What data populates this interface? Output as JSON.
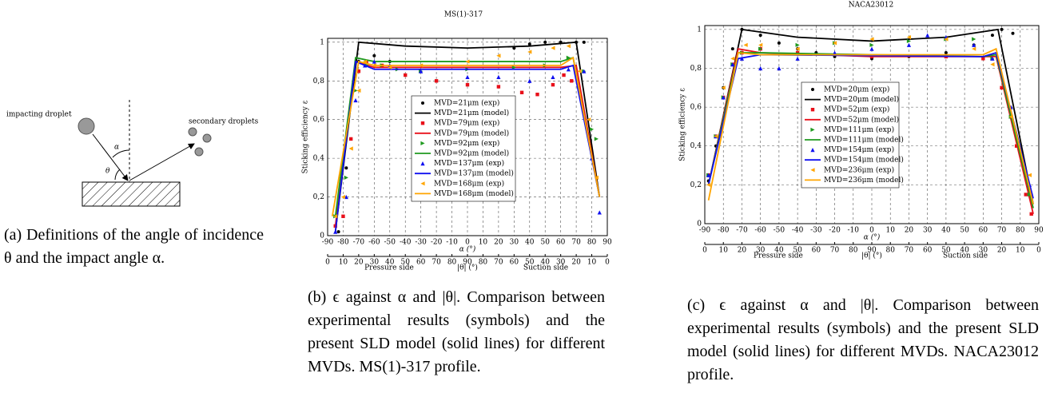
{
  "panel_a": {
    "impacting_label": "impacting droplet",
    "secondary_label": "secondary droplets",
    "alpha_label": "α",
    "theta_label": "θ"
  },
  "captions": [
    "(a) Definitions of the angle of incidence θ and the impact angle α.",
    "(b) ϵ against α and |θ|. Comparison between experimental results (symbols) and the present SLD model (solid lines) for different MVDs. MS(1)-317 profile.",
    "(c) ϵ against α and |θ|. Comparison between experimental results (symbols) and the present SLD model (solid lines) for different MVDs. NACA23012 profile."
  ],
  "chart_data": [
    {
      "type": "line",
      "title": "MS(1)-317",
      "x_label": "α (°)",
      "y_label": "Sticking efficiency ε",
      "x2_label": "|θ| (°)",
      "x2_left_label": "Pressure side",
      "x2_right_label": "Suction side",
      "grid": true,
      "legend": "center",
      "xlim": [
        -90,
        90
      ],
      "ylim": [
        0,
        1.02
      ],
      "xticks": [
        -90,
        -80,
        -70,
        -60,
        -50,
        -40,
        -30,
        -20,
        -10,
        0,
        10,
        20,
        30,
        40,
        50,
        60,
        70,
        80,
        90
      ],
      "yticks": [
        0,
        {
          "value": 0.2,
          "label": "0,2"
        },
        {
          "value": 0.4,
          "label": "0,4"
        },
        {
          "value": 0.6,
          "label": "0,6"
        },
        {
          "value": 0.8,
          "label": "0,8"
        },
        1
      ],
      "x2ticks": [
        {
          "value": -90,
          "label": "0"
        },
        {
          "value": -80,
          "label": "10"
        },
        {
          "value": -70,
          "label": "20"
        },
        {
          "value": -60,
          "label": "30"
        },
        {
          "value": -50,
          "label": "40"
        },
        {
          "value": -40,
          "label": "50"
        },
        {
          "value": -30,
          "label": "60"
        },
        {
          "value": -20,
          "label": "70"
        },
        {
          "value": -10,
          "label": "80"
        },
        {
          "value": 0,
          "label": "90"
        },
        {
          "value": 10,
          "label": "80"
        },
        {
          "value": 20,
          "label": "70"
        },
        {
          "value": 30,
          "label": "60"
        },
        {
          "value": 40,
          "label": "50"
        },
        {
          "value": 50,
          "label": "40"
        },
        {
          "value": 60,
          "label": "30"
        },
        {
          "value": 70,
          "label": "20"
        },
        {
          "value": 80,
          "label": "10"
        },
        {
          "value": 90,
          "label": "0"
        }
      ],
      "series": [
        {
          "name": "MVD=21μm (exp)",
          "color": "#000000",
          "style": "marker",
          "marker": "circle",
          "x": [
            -83,
            -78,
            -74,
            -70,
            -60,
            -50,
            30,
            40,
            50,
            60,
            70,
            75
          ],
          "values": [
            0.02,
            0.35,
            0.75,
            0.9,
            0.93,
            0.9,
            0.97,
            0.99,
            1.0,
            1.0,
            1.0,
            1.0
          ]
        },
        {
          "name": "MVD=21μm (model)",
          "color": "#000000",
          "style": "line",
          "x": [
            -85,
            -70,
            -40,
            0,
            40,
            70,
            85
          ],
          "values": [
            0.02,
            1.0,
            0.98,
            0.97,
            0.98,
            1.0,
            0.2
          ]
        },
        {
          "name": "MVD=79μm (exp)",
          "color": "#e8101a",
          "style": "marker",
          "marker": "square",
          "x": [
            -85,
            -80,
            -75,
            -70,
            -65,
            -55,
            -40,
            -20,
            0,
            20,
            35,
            45,
            55,
            62,
            67
          ],
          "values": [
            0.05,
            0.1,
            0.5,
            0.85,
            0.9,
            0.88,
            0.83,
            0.8,
            0.78,
            0.77,
            0.74,
            0.73,
            0.78,
            0.83,
            0.8
          ]
        },
        {
          "name": "MVD=79μm (model)",
          "color": "#e8101a",
          "style": "line",
          "x": [
            -85,
            -72,
            -60,
            60,
            70,
            85
          ],
          "values": [
            0.05,
            0.9,
            0.87,
            0.87,
            0.88,
            0.2
          ]
        },
        {
          "name": "MVD=92μm (exp)",
          "color": "#1f9a1f",
          "style": "marker",
          "marker": "tri-right",
          "x": [
            -85,
            -78,
            -72,
            -65,
            -55,
            -45,
            -30,
            0,
            30,
            50,
            65,
            75,
            80,
            83
          ],
          "values": [
            0.1,
            0.3,
            0.75,
            0.88,
            0.88,
            0.86,
            0.85,
            0.86,
            0.87,
            0.88,
            0.92,
            0.85,
            0.55,
            0.5
          ]
        },
        {
          "name": "MVD=92μm (model)",
          "color": "#1f9a1f",
          "style": "line",
          "x": [
            -85,
            -72,
            -60,
            60,
            68,
            85
          ],
          "values": [
            0.1,
            0.92,
            0.9,
            0.9,
            0.92,
            0.2
          ]
        },
        {
          "name": "MVD=137μm (exp)",
          "color": "#1010f0",
          "style": "marker",
          "marker": "tri-up",
          "x": [
            -85,
            -78,
            -72,
            -66,
            -60,
            -50,
            -30,
            0,
            20,
            40,
            55,
            65,
            75,
            80,
            85
          ],
          "values": [
            0.02,
            0.2,
            0.7,
            0.88,
            0.9,
            0.88,
            0.85,
            0.82,
            0.82,
            0.8,
            0.82,
            0.86,
            0.85,
            0.4,
            0.12
          ]
        },
        {
          "name": "MVD=137μm (model)",
          "color": "#1010f0",
          "style": "line",
          "x": [
            -85,
            -72,
            -60,
            60,
            68,
            85
          ],
          "values": [
            0.02,
            0.9,
            0.86,
            0.86,
            0.88,
            0.2
          ]
        },
        {
          "name": "MVD=168μm (exp)",
          "color": "#ffa500",
          "style": "marker",
          "marker": "tri-left",
          "x": [
            -85,
            -80,
            -75,
            -70,
            -66,
            -60,
            -50,
            -30,
            0,
            20,
            40,
            55,
            65,
            72,
            78,
            83
          ],
          "values": [
            0.1,
            0.2,
            0.45,
            0.75,
            0.9,
            0.88,
            0.87,
            0.88,
            0.9,
            0.93,
            0.95,
            0.97,
            0.98,
            0.85,
            0.6,
            0.3
          ]
        },
        {
          "name": "MVD=168μm (model)",
          "color": "#ffa500",
          "style": "line",
          "x": [
            -87,
            -70,
            -60,
            60,
            68,
            85
          ],
          "values": [
            0.1,
            0.9,
            0.88,
            0.88,
            0.92,
            0.2
          ]
        }
      ]
    },
    {
      "type": "line",
      "title": "NACA23012",
      "x_label": "α (°)",
      "y_label": "Sticking efficiency ε",
      "x2_label": "|θ| (°)",
      "x2_left_label": "Pressure side",
      "x2_right_label": "Suction side",
      "grid": true,
      "legend": "center",
      "xlim": [
        -90,
        90
      ],
      "ylim": [
        0,
        1.02
      ],
      "xticks": [
        -90,
        -80,
        -70,
        -60,
        -50,
        -40,
        -30,
        -20,
        -10,
        0,
        10,
        20,
        30,
        40,
        50,
        60,
        70,
        80,
        90
      ],
      "yticks": [
        0,
        {
          "value": 0.2,
          "label": "0,2"
        },
        {
          "value": 0.4,
          "label": "0,4"
        },
        {
          "value": 0.6,
          "label": "0,6"
        },
        {
          "value": 0.8,
          "label": "0,8"
        },
        1
      ],
      "x2ticks": [
        {
          "value": -90,
          "label": "0"
        },
        {
          "value": -80,
          "label": "10"
        },
        {
          "value": -70,
          "label": "20"
        },
        {
          "value": -60,
          "label": "30"
        },
        {
          "value": -50,
          "label": "40"
        },
        {
          "value": -40,
          "label": "50"
        },
        {
          "value": -30,
          "label": "60"
        },
        {
          "value": -20,
          "label": "70"
        },
        {
          "value": -10,
          "label": "80"
        },
        {
          "value": 0,
          "label": "90"
        },
        {
          "value": 10,
          "label": "80"
        },
        {
          "value": 20,
          "label": "70"
        },
        {
          "value": 30,
          "label": "60"
        },
        {
          "value": 40,
          "label": "50"
        },
        {
          "value": 50,
          "label": "40"
        },
        {
          "value": 60,
          "label": "30"
        },
        {
          "value": 70,
          "label": "20"
        },
        {
          "value": 80,
          "label": "10"
        },
        {
          "value": 90,
          "label": "0"
        }
      ],
      "series": [
        {
          "name": "MVD=20μm (exp)",
          "color": "#000000",
          "style": "marker",
          "marker": "circle",
          "x": [
            -88,
            -84,
            -80,
            -75,
            -70,
            -60,
            -50,
            -40,
            -30,
            -20,
            0,
            20,
            40,
            55,
            65,
            70,
            76
          ],
          "values": [
            0.22,
            0.4,
            0.7,
            0.9,
            1.0,
            0.97,
            0.93,
            0.9,
            0.88,
            0.86,
            0.85,
            0.86,
            0.88,
            0.92,
            0.97,
            1.0,
            0.98
          ]
        },
        {
          "name": "MVD=20μm (model)",
          "color": "#000000",
          "style": "line",
          "x": [
            -88,
            -70,
            -40,
            0,
            40,
            68,
            87
          ],
          "values": [
            0.2,
            1.0,
            0.96,
            0.94,
            0.96,
            1.0,
            0.1
          ]
        },
        {
          "name": "MVD=52μm (exp)",
          "color": "#e8101a",
          "style": "marker",
          "marker": "square",
          "x": [
            -88,
            -84,
            -80,
            -75,
            -70,
            -60,
            -40,
            0,
            40,
            60,
            70,
            78,
            83,
            86
          ],
          "values": [
            0.25,
            0.45,
            0.65,
            0.82,
            0.88,
            0.9,
            0.88,
            0.86,
            0.86,
            0.85,
            0.7,
            0.4,
            0.15,
            0.05
          ]
        },
        {
          "name": "MVD=52μm (model)",
          "color": "#e8101a",
          "style": "line",
          "x": [
            -88,
            -72,
            -60,
            0,
            60,
            67,
            87
          ],
          "values": [
            0.2,
            0.9,
            0.88,
            0.86,
            0.86,
            0.86,
            0.05
          ]
        },
        {
          "name": "MVD=111μm (exp)",
          "color": "#1f9a1f",
          "style": "marker",
          "marker": "tri-right",
          "x": [
            -88,
            -84,
            -80,
            -75,
            -70,
            -60,
            -40,
            -20,
            0,
            20,
            40,
            55,
            65,
            75,
            85
          ],
          "values": [
            0.25,
            0.45,
            0.65,
            0.82,
            0.88,
            0.9,
            0.92,
            0.93,
            0.92,
            0.94,
            0.95,
            0.95,
            0.85,
            0.55,
            0.15
          ]
        },
        {
          "name": "MVD=111μm (model)",
          "color": "#1f9a1f",
          "style": "line",
          "x": [
            -88,
            -72,
            -60,
            60,
            67,
            87
          ],
          "values": [
            0.2,
            0.88,
            0.88,
            0.86,
            0.87,
            0.08
          ]
        },
        {
          "name": "MVD=154μm (exp)",
          "color": "#1010f0",
          "style": "marker",
          "marker": "tri-up",
          "x": [
            -88,
            -84,
            -80,
            -75,
            -70,
            -60,
            -50,
            -40,
            -20,
            0,
            20,
            30,
            40,
            55,
            65,
            75,
            85
          ],
          "values": [
            0.25,
            0.45,
            0.65,
            0.82,
            0.85,
            0.8,
            0.8,
            0.85,
            0.88,
            0.9,
            0.92,
            0.97,
            0.96,
            0.92,
            0.85,
            0.6,
            0.2
          ]
        },
        {
          "name": "MVD=154μm (model)",
          "color": "#1010f0",
          "style": "line",
          "x": [
            -88,
            -72,
            -60,
            60,
            67,
            87
          ],
          "values": [
            0.2,
            0.85,
            0.87,
            0.86,
            0.88,
            0.13
          ]
        },
        {
          "name": "MVD=236μm (exp)",
          "color": "#ffa500",
          "style": "marker",
          "marker": "tri-left",
          "x": [
            -88,
            -84,
            -80,
            -75,
            -68,
            -60,
            -40,
            -20,
            0,
            20,
            40,
            55,
            65,
            75,
            85
          ],
          "values": [
            0.2,
            0.45,
            0.7,
            0.85,
            0.92,
            0.92,
            0.9,
            0.93,
            0.95,
            0.96,
            0.95,
            0.9,
            0.82,
            0.55,
            0.25
          ]
        },
        {
          "name": "MVD=236μm (model)",
          "color": "#ffa500",
          "style": "line",
          "x": [
            -88,
            -72,
            -60,
            60,
            67,
            87
          ],
          "values": [
            0.12,
            0.88,
            0.87,
            0.87,
            0.9,
            0.1
          ]
        }
      ]
    }
  ]
}
